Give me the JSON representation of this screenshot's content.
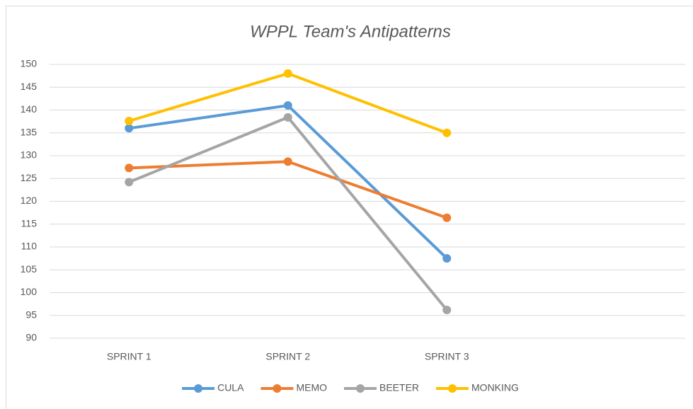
{
  "chart_data": {
    "type": "line",
    "title": "WPPL Team's Antipatterns",
    "categories": [
      "SPRINT 1",
      "SPRINT 2",
      "SPRINT 3",
      null
    ],
    "series": [
      {
        "name": "CULA",
        "color": "#5b9bd5",
        "values": [
          136,
          141,
          107.5,
          null
        ]
      },
      {
        "name": "MEMO",
        "color": "#ed7d31",
        "values": [
          127.3,
          128.7,
          116.4,
          null
        ]
      },
      {
        "name": "BEETER",
        "color": "#a5a5a5",
        "values": [
          124.2,
          138.4,
          96.2,
          null
        ]
      },
      {
        "name": "MONKING",
        "color": "#ffc000",
        "values": [
          137.6,
          148,
          135,
          null
        ]
      }
    ],
    "ylim": [
      90,
      150
    ],
    "yticks": [
      90,
      95,
      100,
      105,
      110,
      115,
      120,
      125,
      130,
      135,
      140,
      145,
      150
    ],
    "grid": true,
    "legend": "bottom"
  }
}
